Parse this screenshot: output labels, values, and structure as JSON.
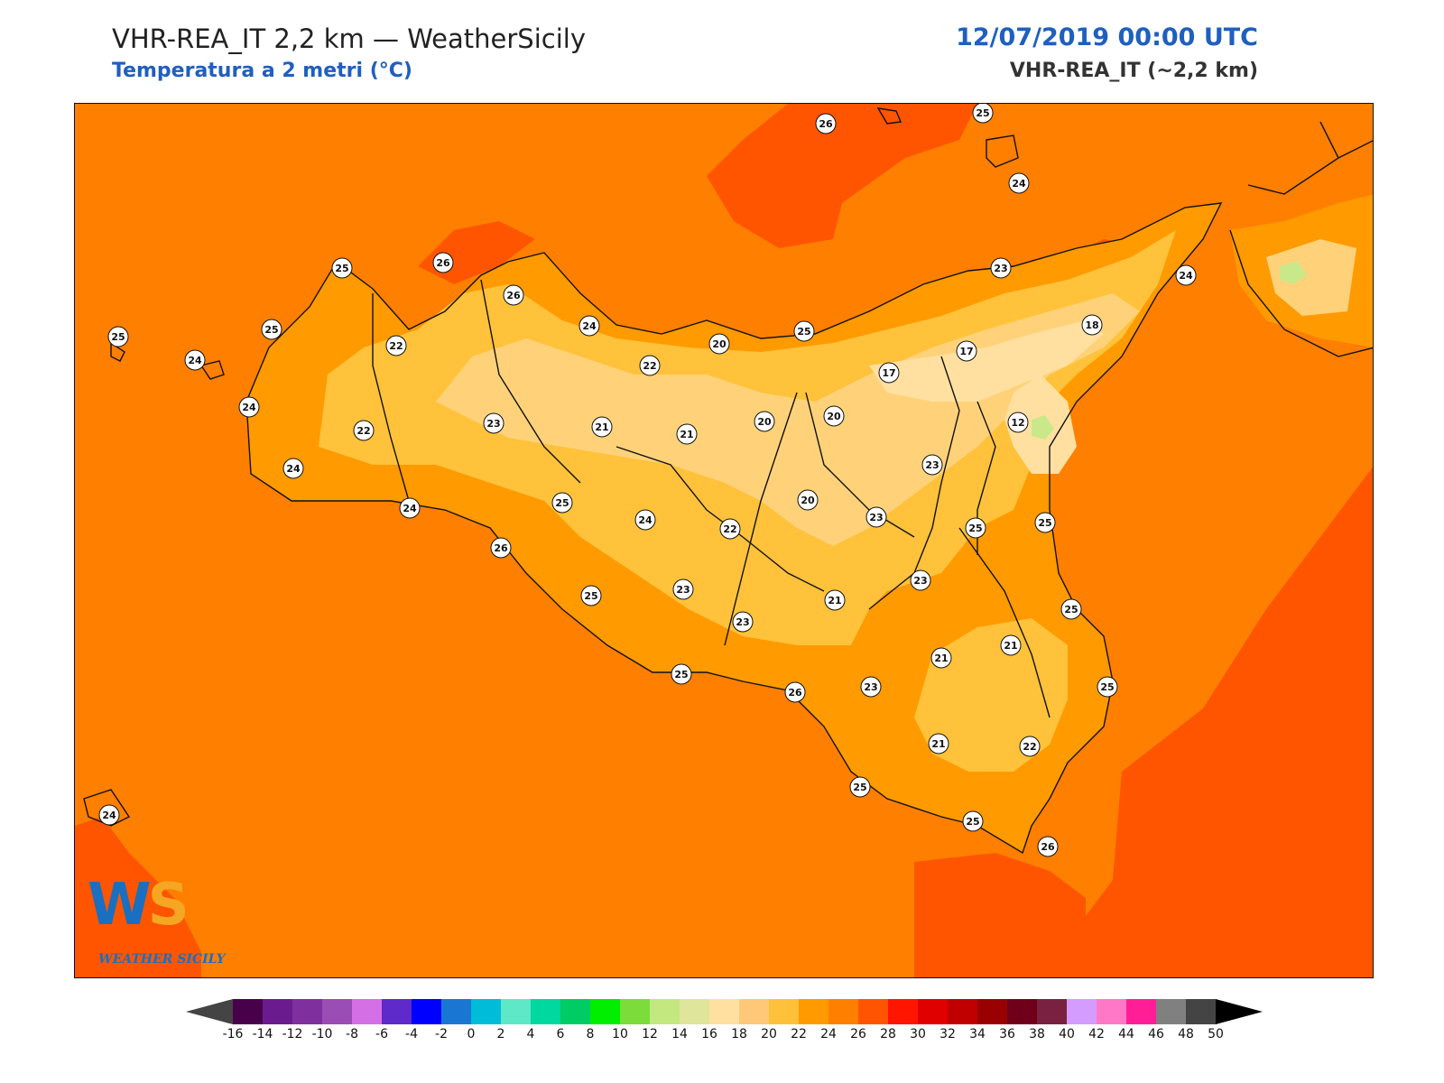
{
  "header": {
    "title": "VHR-REA_IT 2,2 km — WeatherSicily",
    "subtitle": "Temperatura a 2 metri (°C)",
    "datetime": "12/07/2019 00:00 UTC",
    "model": "VHR-REA_IT (~2,2 km)",
    "accent_color": "#1f5fbf"
  },
  "logo": {
    "mark": "WS",
    "name": "WEATHER SICILY"
  },
  "map": {
    "sea_color": "#ff7f00",
    "warm_sea_color": "#ff5500",
    "land_colors": [
      "#ff9a00",
      "#ffc23a",
      "#ffd27a",
      "#ffe0a0",
      "#c8e88a"
    ],
    "station_labels": [
      {
        "name": "station-stromboli",
        "value": "26"
      },
      {
        "name": "station-panarea",
        "value": "25"
      },
      {
        "name": "station-vulcano",
        "value": "24"
      },
      {
        "name": "station-capo-gallo",
        "value": "26"
      },
      {
        "name": "station-palermo",
        "value": "26"
      },
      {
        "name": "station-san-vito",
        "value": "25"
      },
      {
        "name": "station-trapani-north",
        "value": "25"
      },
      {
        "name": "station-marettimo",
        "value": "25"
      },
      {
        "name": "station-favignana",
        "value": "24"
      },
      {
        "name": "station-trapani",
        "value": "24"
      },
      {
        "name": "station-mazara",
        "value": "24"
      },
      {
        "name": "station-marsala",
        "value": "22"
      },
      {
        "name": "station-alcamo",
        "value": "22"
      },
      {
        "name": "station-termini",
        "value": "24"
      },
      {
        "name": "station-corleone",
        "value": "23"
      },
      {
        "name": "station-castelbuono",
        "value": "22"
      },
      {
        "name": "station-cefalu-inland",
        "value": "20"
      },
      {
        "name": "station-lercara",
        "value": "21"
      },
      {
        "name": "station-caltavuturo",
        "value": "21"
      },
      {
        "name": "station-petralia",
        "value": "20"
      },
      {
        "name": "station-santo-stefano",
        "value": "25"
      },
      {
        "name": "station-nicosia",
        "value": "20"
      },
      {
        "name": "station-cesaro",
        "value": "17"
      },
      {
        "name": "station-randazzo",
        "value": "17"
      },
      {
        "name": "station-milazzo",
        "value": "23"
      },
      {
        "name": "station-messina",
        "value": "24"
      },
      {
        "name": "station-peloritani",
        "value": "18"
      },
      {
        "name": "station-etna",
        "value": "12"
      },
      {
        "name": "station-bronte",
        "value": "23"
      },
      {
        "name": "station-enna",
        "value": "20"
      },
      {
        "name": "station-leonforte",
        "value": "23"
      },
      {
        "name": "station-paterno",
        "value": "25"
      },
      {
        "name": "station-acireale",
        "value": "25"
      },
      {
        "name": "station-sciacca",
        "value": "24"
      },
      {
        "name": "station-ribera",
        "value": "26"
      },
      {
        "name": "station-cammarata",
        "value": "25"
      },
      {
        "name": "station-canicatti-north",
        "value": "24"
      },
      {
        "name": "station-caltanissetta",
        "value": "22"
      },
      {
        "name": "station-agrigento-inland",
        "value": "25"
      },
      {
        "name": "station-naro",
        "value": "23"
      },
      {
        "name": "station-piazza",
        "value": "21"
      },
      {
        "name": "station-caltagirone",
        "value": "23"
      },
      {
        "name": "station-riesi",
        "value": "23"
      },
      {
        "name": "station-licata",
        "value": "25"
      },
      {
        "name": "station-gela",
        "value": "26"
      },
      {
        "name": "station-niscemi",
        "value": "23"
      },
      {
        "name": "station-vizzini",
        "value": "21"
      },
      {
        "name": "station-sortino",
        "value": "21"
      },
      {
        "name": "station-catania-south",
        "value": "25"
      },
      {
        "name": "station-augusta",
        "value": "25"
      },
      {
        "name": "station-ragusa",
        "value": "21"
      },
      {
        "name": "station-noto",
        "value": "22"
      },
      {
        "name": "station-scoglitti",
        "value": "25"
      },
      {
        "name": "station-pozzallo",
        "value": "25"
      },
      {
        "name": "station-pachino",
        "value": "26"
      },
      {
        "name": "station-pantelleria",
        "value": "24"
      }
    ]
  },
  "colorbar": {
    "colors": [
      "#48004b",
      "#6a1c8e",
      "#7f2f9e",
      "#9a4db4",
      "#d56fe5",
      "#5e2ac9",
      "#0000ff",
      "#1976d2",
      "#00bcd8",
      "#5ee8c8",
      "#00d8a0",
      "#00cc66",
      "#00ee00",
      "#7bdc3a",
      "#c4e880",
      "#dfe59a",
      "#ffe0a0",
      "#ffc878",
      "#ffc03a",
      "#ff9a00",
      "#ff7f00",
      "#ff5500",
      "#ff1500",
      "#e00000",
      "#c00000",
      "#990000",
      "#70001a",
      "#7a2040",
      "#d49cff",
      "#ff78c8",
      "#ff1e96",
      "#808080",
      "#444444"
    ],
    "under_color": "#444444",
    "over_color": "#000000",
    "ticks": [
      "-16",
      "-14",
      "-12",
      "-10",
      "-8",
      "-6",
      "-4",
      "-2",
      "0",
      "2",
      "4",
      "6",
      "8",
      "10",
      "12",
      "14",
      "16",
      "18",
      "20",
      "22",
      "24",
      "26",
      "28",
      "30",
      "32",
      "34",
      "36",
      "38",
      "40",
      "42",
      "44",
      "46",
      "48",
      "50"
    ]
  }
}
